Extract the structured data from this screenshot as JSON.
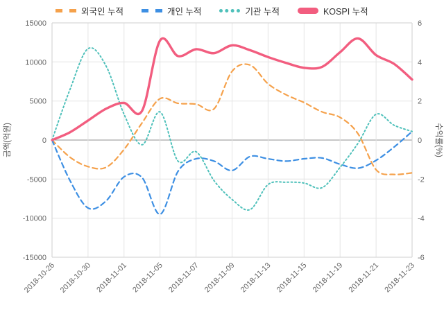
{
  "page": {
    "background": "#ffffff"
  },
  "legend": {
    "items": [
      {
        "label": "외국인 누적",
        "color": "#F5A14B",
        "style": "dashed"
      },
      {
        "label": "개인 누적",
        "color": "#3D8FE3",
        "style": "dashed"
      },
      {
        "label": "기관 누적",
        "color": "#4EC0BA",
        "style": "dotted"
      },
      {
        "label": "KOSPI 누적",
        "color": "#F25D7F",
        "style": "solid"
      }
    ]
  },
  "axes": {
    "left_title": "금액(억원)",
    "right_title": "수익률(%)",
    "left_ticks": [
      "15000",
      "10000",
      "5000",
      "0",
      "-5000",
      "-10000",
      "-15000"
    ],
    "right_ticks": [
      "6",
      "4",
      "2",
      "0",
      "-2",
      "-4",
      "-6"
    ],
    "x_ticks": [
      "2018-10-26",
      "2018-10-30",
      "2018-11-01",
      "2018-11-05",
      "2018-11-07",
      "2018-11-09",
      "2018-11-13",
      "2018-11-15",
      "2018-11-19",
      "2018-11-21",
      "2018-11-23"
    ]
  },
  "chart_data": {
    "type": "line",
    "x": [
      "2018-10-26",
      "2018-10-29",
      "2018-10-30",
      "2018-10-31",
      "2018-11-01",
      "2018-11-02",
      "2018-11-05",
      "2018-11-06",
      "2018-11-07",
      "2018-11-08",
      "2018-11-09",
      "2018-11-12",
      "2018-11-13",
      "2018-11-14",
      "2018-11-15",
      "2018-11-16",
      "2018-11-19",
      "2018-11-20",
      "2018-11-21",
      "2018-11-22",
      "2018-11-23"
    ],
    "x_tick_every": 2,
    "ylim_left": [
      -15000,
      15000
    ],
    "ylim_right": [
      -6,
      6
    ],
    "ylabel_left": "금액(억원)",
    "ylabel_right": "수익률(%)",
    "grid": true,
    "legend_position": "top",
    "series": [
      {
        "name": "외국인 누적",
        "axis": "left",
        "unit": "억원",
        "color": "#F5A14B",
        "style": "dashed",
        "width": 2.2,
        "values": [
          0,
          -2200,
          -3400,
          -3500,
          -1200,
          2200,
          5300,
          4700,
          4600,
          4000,
          8800,
          9600,
          7200,
          5800,
          4800,
          3600,
          2900,
          800,
          -3800,
          -4400,
          -4200
        ]
      },
      {
        "name": "개인 누적",
        "axis": "left",
        "unit": "억원",
        "color": "#3D8FE3",
        "style": "dashed",
        "width": 2.2,
        "values": [
          0,
          -5200,
          -8700,
          -7800,
          -4700,
          -4800,
          -9500,
          -4000,
          -2400,
          -2700,
          -3900,
          -2100,
          -2400,
          -2700,
          -2400,
          -2300,
          -3100,
          -3600,
          -2600,
          -900,
          1100
        ]
      },
      {
        "name": "기관 누적",
        "axis": "left",
        "unit": "억원",
        "color": "#4EC0BA",
        "style": "dotted",
        "width": 2,
        "values": [
          0,
          6500,
          11700,
          9500,
          3300,
          -600,
          3600,
          -2700,
          -1500,
          -5200,
          -7600,
          -8900,
          -5700,
          -5400,
          -5500,
          -6100,
          -3500,
          -400,
          3300,
          1900,
          1100
        ]
      },
      {
        "name": "KOSPI 누적",
        "axis": "right",
        "unit": "%",
        "color": "#F25D7F",
        "style": "solid",
        "width": 3.4,
        "values": [
          0,
          0.4,
          1.0,
          1.6,
          1.9,
          1.5,
          5.1,
          4.3,
          4.65,
          4.45,
          4.85,
          4.6,
          4.25,
          3.95,
          3.7,
          3.75,
          4.5,
          5.2,
          4.35,
          3.9,
          3.1
        ]
      }
    ]
  }
}
